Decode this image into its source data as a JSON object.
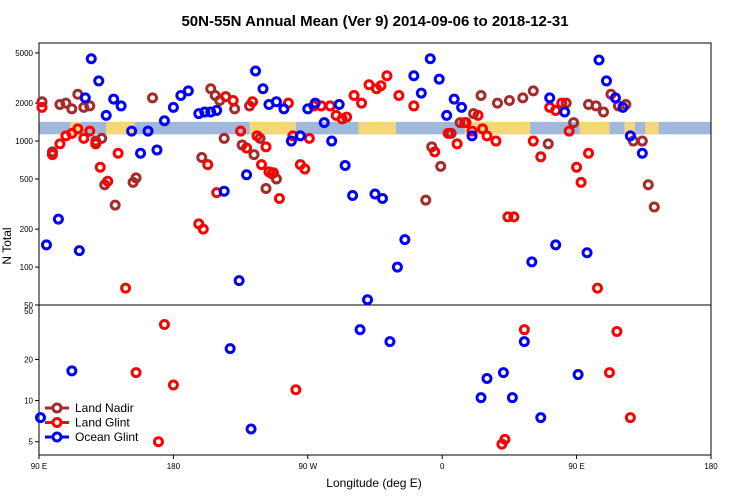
{
  "chart_data": {
    "type": "scatter",
    "title": "50N-55N Annual Mean (Ver 9)   2014-09-06 to 2018-12-31",
    "xlabel": "Longitude (deg E)",
    "ylabel": "N Total",
    "xlim": [
      90,
      540
    ],
    "xticks": [
      {
        "value": 90,
        "label": "90 E"
      },
      {
        "value": 180,
        "label": "180"
      },
      {
        "value": 270,
        "label": "90 W"
      },
      {
        "value": 360,
        "label": "0"
      },
      {
        "value": 450,
        "label": "90 E"
      },
      {
        "value": 540,
        "label": "180"
      }
    ],
    "upper_panel": {
      "scale": "log",
      "ylim": [
        50,
        6000
      ],
      "yticks": [
        50,
        100,
        200,
        500,
        1000,
        2000,
        5000
      ]
    },
    "lower_panel": {
      "scale": "log",
      "ylim": [
        4,
        50
      ],
      "yticks": [
        5,
        10,
        20,
        50
      ]
    },
    "legend": {
      "position": "bottom-left",
      "entries": [
        {
          "label": "Land Nadir",
          "color": "#a52a2a"
        },
        {
          "label": "Land Glint",
          "color": "#ff0000"
        },
        {
          "label": "Ocean Glint",
          "color": "#0000ff"
        }
      ]
    },
    "background_band": {
      "y_range": [
        1130,
        1420
      ],
      "ocean_color": "#9fb8dc",
      "land_color": "#f5d77a",
      "land_segments": [
        [
          111,
          118
        ],
        [
          135,
          154
        ],
        [
          231,
          262
        ],
        [
          304,
          329
        ],
        [
          375,
          419
        ],
        [
          452,
          472
        ],
        [
          482,
          489
        ],
        [
          496,
          505
        ]
      ]
    },
    "series": [
      {
        "name": "Land Nadir",
        "color": "#a52a2a",
        "points": [
          [
            92,
            2050
          ],
          [
            99,
            820
          ],
          [
            104,
            1950
          ],
          [
            108,
            2000
          ],
          [
            112,
            1800
          ],
          [
            116,
            2350
          ],
          [
            120,
            1850
          ],
          [
            124,
            1900
          ],
          [
            128,
            1000
          ],
          [
            132,
            1050
          ],
          [
            134,
            450
          ],
          [
            141,
            310
          ],
          [
            153,
            470
          ],
          [
            155,
            510
          ],
          [
            166,
            2200
          ],
          [
            199,
            740
          ],
          [
            205,
            2600
          ],
          [
            208,
            2300
          ],
          [
            211,
            2100
          ],
          [
            214,
            1050
          ],
          [
            221,
            1800
          ],
          [
            226,
            930
          ],
          [
            231,
            1900
          ],
          [
            234,
            780
          ],
          [
            238,
            1050
          ],
          [
            242,
            420
          ],
          [
            246,
            550
          ],
          [
            249,
            500
          ],
          [
            349,
            340
          ],
          [
            353,
            900
          ],
          [
            359,
            630
          ],
          [
            366,
            1150
          ],
          [
            372,
            1400
          ],
          [
            376,
            1400
          ],
          [
            381,
            1650
          ],
          [
            386,
            2300
          ],
          [
            397,
            2000
          ],
          [
            405,
            2100
          ],
          [
            414,
            2200
          ],
          [
            421,
            2500
          ],
          [
            431,
            950
          ],
          [
            443,
            2000
          ],
          [
            448,
            1400
          ],
          [
            458,
            1950
          ],
          [
            463,
            1900
          ],
          [
            468,
            1700
          ],
          [
            473,
            2350
          ],
          [
            478,
            1900
          ],
          [
            483,
            1950
          ],
          [
            488,
            1000
          ],
          [
            494,
            1000
          ],
          [
            498,
            450
          ],
          [
            502,
            300
          ]
        ]
      },
      {
        "name": "Land Glint",
        "color": "#ff0000",
        "points": [
          [
            92,
            1850
          ],
          [
            99,
            780
          ],
          [
            104,
            950
          ],
          [
            108,
            1100
          ],
          [
            112,
            1150
          ],
          [
            116,
            1250
          ],
          [
            120,
            1050
          ],
          [
            124,
            1200
          ],
          [
            128,
            950
          ],
          [
            131,
            620
          ],
          [
            136,
            480
          ],
          [
            143,
            800
          ],
          [
            148,
            68
          ],
          [
            155,
            16
          ],
          [
            170,
            5
          ],
          [
            174,
            36
          ],
          [
            180,
            13
          ],
          [
            197,
            220
          ],
          [
            200,
            200
          ],
          [
            203,
            650
          ],
          [
            209,
            390
          ],
          [
            215,
            2250
          ],
          [
            220,
            2100
          ],
          [
            225,
            1200
          ],
          [
            229,
            880
          ],
          [
            233,
            2050
          ],
          [
            236,
            1100
          ],
          [
            239,
            650
          ],
          [
            242,
            900
          ],
          [
            244,
            570
          ],
          [
            247,
            560
          ],
          [
            251,
            350
          ],
          [
            257,
            2000
          ],
          [
            260,
            1100
          ],
          [
            262,
            12
          ],
          [
            265,
            650
          ],
          [
            268,
            600
          ],
          [
            271,
            1050
          ],
          [
            274,
            1900
          ],
          [
            279,
            1900
          ],
          [
            285,
            1900
          ],
          [
            289,
            1600
          ],
          [
            293,
            1500
          ],
          [
            296,
            1550
          ],
          [
            301,
            2300
          ],
          [
            306,
            2000
          ],
          [
            311,
            2800
          ],
          [
            316,
            2600
          ],
          [
            319,
            2750
          ],
          [
            323,
            3300
          ],
          [
            331,
            2300
          ],
          [
            341,
            1900
          ],
          [
            355,
            820
          ],
          [
            364,
            1150
          ],
          [
            370,
            950
          ],
          [
            375,
            1400
          ],
          [
            380,
            1200
          ],
          [
            384,
            1600
          ],
          [
            387,
            1250
          ],
          [
            390,
            1100
          ],
          [
            396,
            1000
          ],
          [
            400,
            4.8
          ],
          [
            402,
            5.2
          ],
          [
            404,
            250
          ],
          [
            408,
            250
          ],
          [
            415,
            33
          ],
          [
            421,
            1000
          ],
          [
            426,
            750
          ],
          [
            432,
            1850
          ],
          [
            436,
            1750
          ],
          [
            440,
            2000
          ],
          [
            445,
            1200
          ],
          [
            450,
            620
          ],
          [
            453,
            470
          ],
          [
            458,
            800
          ],
          [
            464,
            68
          ],
          [
            472,
            16
          ],
          [
            477,
            32
          ],
          [
            486,
            7.5
          ]
        ]
      },
      {
        "name": "Ocean Glint",
        "color": "#0000ff",
        "points": [
          [
            91,
            7.5
          ],
          [
            95,
            150
          ],
          [
            103,
            240
          ],
          [
            112,
            16.5
          ],
          [
            117,
            135
          ],
          [
            121,
            2200
          ],
          [
            125,
            4500
          ],
          [
            130,
            3000
          ],
          [
            135,
            1600
          ],
          [
            140,
            2150
          ],
          [
            145,
            1900
          ],
          [
            152,
            1200
          ],
          [
            158,
            800
          ],
          [
            163,
            1200
          ],
          [
            169,
            850
          ],
          [
            174,
            1450
          ],
          [
            180,
            1850
          ],
          [
            185,
            2300
          ],
          [
            190,
            2500
          ],
          [
            197,
            1650
          ],
          [
            201,
            1700
          ],
          [
            205,
            1700
          ],
          [
            209,
            1750
          ],
          [
            214,
            400
          ],
          [
            218,
            24
          ],
          [
            224,
            78
          ],
          [
            229,
            540
          ],
          [
            232,
            6.2
          ],
          [
            235,
            3600
          ],
          [
            240,
            2600
          ],
          [
            244,
            1950
          ],
          [
            249,
            2050
          ],
          [
            254,
            1800
          ],
          [
            259,
            1000
          ],
          [
            265,
            1100
          ],
          [
            270,
            1800
          ],
          [
            275,
            2000
          ],
          [
            281,
            1400
          ],
          [
            286,
            1000
          ],
          [
            291,
            1950
          ],
          [
            295,
            640
          ],
          [
            300,
            370
          ],
          [
            305,
            33
          ],
          [
            310,
            55
          ],
          [
            315,
            380
          ],
          [
            320,
            350
          ],
          [
            325,
            27
          ],
          [
            330,
            100
          ],
          [
            335,
            165
          ],
          [
            341,
            3300
          ],
          [
            346,
            2400
          ],
          [
            352,
            4500
          ],
          [
            358,
            3100
          ],
          [
            363,
            1600
          ],
          [
            368,
            2150
          ],
          [
            373,
            1850
          ],
          [
            380,
            1100
          ],
          [
            386,
            10.5
          ],
          [
            390,
            14.5
          ],
          [
            401,
            16
          ],
          [
            407,
            10.5
          ],
          [
            415,
            27
          ],
          [
            420,
            110
          ],
          [
            426,
            7.5
          ],
          [
            432,
            2200
          ],
          [
            436,
            150
          ],
          [
            442,
            1700
          ],
          [
            451,
            15.5
          ],
          [
            457,
            130
          ],
          [
            465,
            4400
          ],
          [
            470,
            3000
          ],
          [
            476,
            2200
          ],
          [
            481,
            1850
          ],
          [
            486,
            1100
          ],
          [
            494,
            800
          ]
        ]
      }
    ]
  }
}
